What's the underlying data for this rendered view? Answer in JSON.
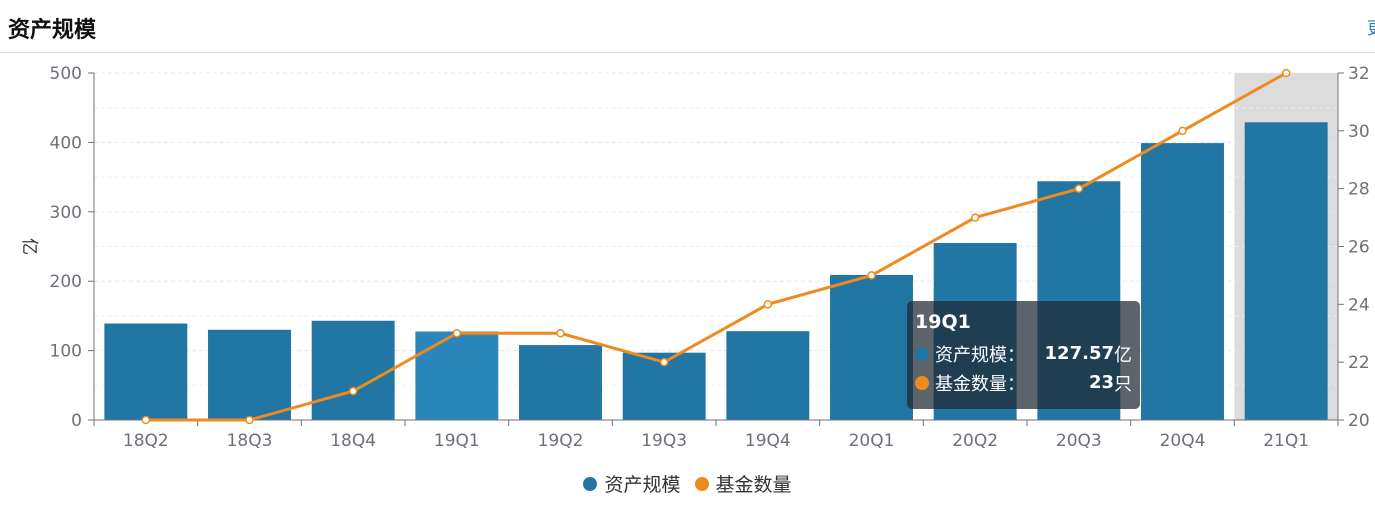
{
  "header": {
    "title": "资产规模",
    "more_label": "更"
  },
  "colors": {
    "bar": "#2176a3",
    "bar_hover": "#2a86bb",
    "line": "#ef8a1f",
    "axis": "#6e7079",
    "grid": "#e6e6e6",
    "highlight": "#dcdcdc"
  },
  "chart_data": {
    "type": "bar",
    "categories": [
      "18Q2",
      "18Q3",
      "18Q4",
      "19Q1",
      "19Q2",
      "19Q3",
      "19Q4",
      "20Q1",
      "20Q2",
      "20Q3",
      "20Q4",
      "21Q1"
    ],
    "series": [
      {
        "name": "资产规模",
        "type": "bar",
        "axis": "left",
        "values": [
          139,
          130,
          143,
          127.57,
          108,
          97,
          128,
          209,
          255,
          344,
          399,
          429
        ]
      },
      {
        "name": "基金数量",
        "type": "line",
        "axis": "right",
        "values": [
          20,
          20,
          21,
          23,
          23,
          22,
          24,
          25,
          27,
          28,
          30,
          32
        ]
      }
    ],
    "ylabel": "亿",
    "ylim": [
      0,
      500
    ],
    "yticks": [
      "0",
      "100",
      "200",
      "300",
      "400",
      "500"
    ],
    "y2lim": [
      20,
      32
    ],
    "y2ticks": [
      "20",
      "22",
      "24",
      "26",
      "28",
      "30",
      "32"
    ],
    "highlight_category": "21Q1",
    "legend_position": "bottom-center",
    "grid": true
  },
  "tooltip": {
    "title": "19Q1",
    "rows": [
      {
        "name": "资产规模：",
        "value": "127.57",
        "unit": "亿"
      },
      {
        "name": "基金数量：",
        "value": "23",
        "unit": "只"
      }
    ]
  }
}
